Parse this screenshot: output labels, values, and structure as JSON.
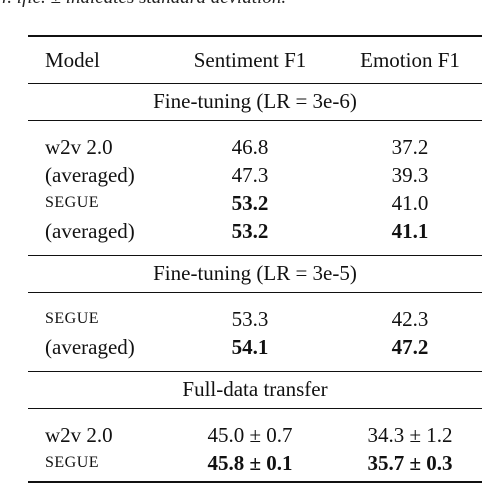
{
  "caption": "r. ific. ± indicates standard deviation.",
  "table": {
    "header": [
      "Model",
      "Sentiment F1",
      "Emotion F1"
    ],
    "sections": [
      {
        "title": "Fine-tuning (LR = 3e-6)",
        "rows": [
          [
            {
              "text": "w2v 2.0"
            },
            {
              "text": "46.8"
            },
            {
              "text": "37.2"
            }
          ],
          [
            {
              "text": "(averaged)"
            },
            {
              "text": "47.3"
            },
            {
              "text": "39.3"
            }
          ],
          [
            {
              "text": "SEGUE",
              "small_caps": true
            },
            {
              "text": "53.2",
              "bold": true
            },
            {
              "text": "41.0"
            }
          ],
          [
            {
              "text": "(averaged)"
            },
            {
              "text": "53.2",
              "bold": true
            },
            {
              "text": "41.1",
              "bold": true
            }
          ]
        ]
      },
      {
        "title": "Fine-tuning (LR = 3e-5)",
        "rows": [
          [
            {
              "text": "SEGUE",
              "small_caps": true
            },
            {
              "text": "53.3"
            },
            {
              "text": "42.3"
            }
          ],
          [
            {
              "text": "(averaged)"
            },
            {
              "text": "54.1",
              "bold": true
            },
            {
              "text": "47.2",
              "bold": true
            }
          ]
        ]
      },
      {
        "title": "Full-data transfer",
        "rows": [
          [
            {
              "text": "w2v 2.0"
            },
            {
              "text": "45.0 ± 0.7"
            },
            {
              "text": "34.3 ± 1.2"
            }
          ],
          [
            {
              "text": "SEGUE",
              "small_caps": true
            },
            {
              "text": "45.8 ± 0.1",
              "bold": true
            },
            {
              "text": "35.7 ± 0.3",
              "bold": true
            }
          ]
        ]
      }
    ]
  }
}
